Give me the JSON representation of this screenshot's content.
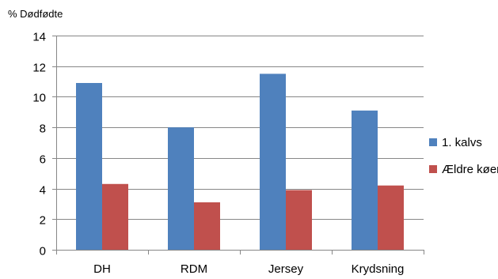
{
  "chart_data": {
    "type": "bar",
    "ylabel": "% Dødfødte",
    "xlabel": "",
    "title": "",
    "categories": [
      "DH",
      "RDM",
      "Jersey",
      "Krydsning"
    ],
    "series": [
      {
        "name": "1. kalvs",
        "color": "#4f81bd",
        "values": [
          10.9,
          8.0,
          11.5,
          9.1
        ]
      },
      {
        "name": "Ældre køer",
        "color": "#c0504d",
        "values": [
          4.3,
          3.1,
          3.9,
          4.2
        ]
      }
    ],
    "ylim": [
      0,
      14
    ],
    "yticks": [
      0,
      2,
      4,
      6,
      8,
      10,
      12,
      14
    ],
    "grid": true,
    "legend": "right"
  }
}
